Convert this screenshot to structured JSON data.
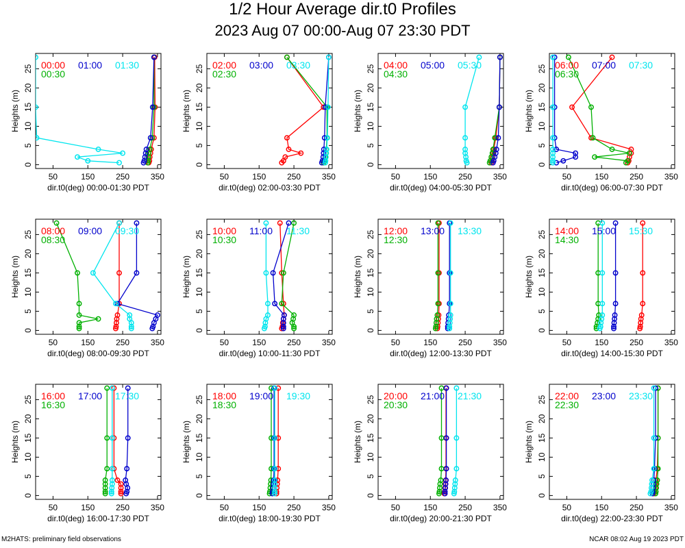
{
  "title": "1/2 Hour Average dir.t0 Profiles",
  "subtitle": "2023 Aug 07 00:00-Aug 07 23:30 PDT",
  "footer_left": "M2HATS: preliminary field observations",
  "footer_right": "NCAR 08:02 Aug 19 2023 PDT",
  "colors": {
    "first": "#ff0000",
    "second": "#00b000",
    "third": "#0000cc",
    "fourth": "#00e5ee"
  },
  "chart_data": {
    "type": "line",
    "shared": {
      "ylabel": "Heights (m)",
      "xlim": [
        0,
        360
      ],
      "ylim": [
        -1,
        29
      ],
      "xticks": [
        50,
        150,
        250,
        350
      ],
      "yticks": [
        0,
        5,
        10,
        15,
        20,
        25
      ],
      "heights": [
        0.5,
        1,
        2,
        3,
        4,
        7,
        15,
        28
      ],
      "legend_placement": "top"
    },
    "panels": [
      {
        "xlabel": "dir.t0(deg) 00:00-01:30 PDT",
        "series": [
          {
            "name": "00:00",
            "values": [
              325,
              327,
              328,
              330,
              332,
              340,
              343,
              342
            ]
          },
          {
            "name": "00:30",
            "values": [
              322,
              323,
              324,
              325,
              328,
              335,
              340,
              340
            ]
          },
          {
            "name": "01:00",
            "values": [
              310,
              312,
              314,
              316,
              318,
              330,
              336,
              340
            ]
          },
          {
            "name": "01:30",
            "values": [
              240,
              150,
              120,
              250,
              180,
              3,
              0,
              0
            ]
          }
        ]
      },
      {
        "xlabel": "dir.t0(deg) 02:00-03:30 PDT",
        "series": [
          {
            "name": "02:00",
            "values": [
              215,
              220,
              225,
              270,
              235,
              230,
              335,
              230
            ]
          },
          {
            "name": "02:30",
            "values": [
              335,
              337,
              340,
              342,
              343,
              345,
              345,
              230
            ]
          },
          {
            "name": "03:00",
            "values": [
              330,
              332,
              334,
              335,
              336,
              338,
              340,
              350
            ]
          },
          {
            "name": "03:30",
            "values": [
              340,
              341,
              342,
              343,
              344,
              346,
              348,
              350
            ]
          }
        ]
      },
      {
        "xlabel": "dir.t0(deg) 04:00-05:30 PDT",
        "series": [
          {
            "name": "04:00",
            "values": [
              325,
              327,
              329,
              330,
              332,
              338,
              348,
              350
            ]
          },
          {
            "name": "04:30",
            "values": [
              320,
              322,
              325,
              328,
              330,
              335,
              348,
              350
            ]
          },
          {
            "name": "05:00",
            "values": [
              330,
              332,
              335,
              338,
              340,
              345,
              348,
              350
            ]
          },
          {
            "name": "05:30",
            "values": [
              255,
              253,
              252,
              250,
              250,
              250,
              250,
              290
            ]
          }
        ]
      },
      {
        "xlabel": "dir.t0(deg) 06:00-07:30 PDT",
        "series": [
          {
            "name": "06:00",
            "values": [
              225,
              228,
              230,
              235,
              235,
              120,
              65,
              180
            ]
          },
          {
            "name": "06:30",
            "values": [
              220,
              225,
              130,
              230,
              180,
              125,
              120,
              55
            ]
          },
          {
            "name": "07:00",
            "values": [
              20,
              40,
              75,
              75,
              20,
              15,
              15,
              15
            ]
          },
          {
            "name": "07:30",
            "values": [
              10,
              10,
              10,
              10,
              10,
              10,
              10,
              10
            ]
          }
        ]
      },
      {
        "xlabel": "dir.t0(deg) 08:00-09:30 PDT",
        "series": [
          {
            "name": "08:00",
            "values": [
              230,
              231,
              232,
              233,
              235,
              240,
              240,
              240
            ]
          },
          {
            "name": "08:30",
            "values": [
              125,
              125,
              125,
              180,
              125,
              125,
              120,
              60
            ]
          },
          {
            "name": "09:00",
            "values": [
              335,
              337,
              340,
              345,
              350,
              235,
              290,
              290
            ]
          },
          {
            "name": "09:30",
            "values": [
              275,
              275,
              275,
              270,
              270,
              230,
              165,
              240
            ]
          }
        ]
      },
      {
        "xlabel": "dir.t0(deg) 10:00-11:30 PDT",
        "series": [
          {
            "name": "10:00",
            "values": [
              215,
              217,
              218,
              220,
              222,
              220,
              215,
              210
            ]
          },
          {
            "name": "10:30",
            "values": [
              250,
              250,
              245,
              248,
              250,
              215,
              220,
              250
            ]
          },
          {
            "name": "11:00",
            "values": [
              220,
              220,
              220,
              220,
              222,
              195,
              190,
              235
            ]
          },
          {
            "name": "11:30",
            "values": [
              165,
              167,
              168,
              170,
              175,
              175,
              170,
              170
            ]
          }
        ]
      },
      {
        "xlabel": "dir.t0(deg) 12:00-13:30 PDT",
        "series": [
          {
            "name": "12:00",
            "values": [
              170,
              171,
              172,
              173,
              174,
              175,
              175,
              175
            ]
          },
          {
            "name": "12:30",
            "values": [
              165,
              166,
              167,
              168,
              170,
              172,
              172,
              172
            ]
          },
          {
            "name": "13:00",
            "values": [
              200,
              200,
              201,
              202,
              203,
              205,
              205,
              205
            ]
          },
          {
            "name": "13:30",
            "values": [
              205,
              205,
              206,
              207,
              208,
              208,
              208,
              208
            ]
          }
        ]
      },
      {
        "xlabel": "dir.t0(deg) 14:00-15:30 PDT",
        "series": [
          {
            "name": "14:00",
            "values": [
              260,
              261,
              262,
              263,
              265,
              268,
              268,
              268
            ]
          },
          {
            "name": "14:30",
            "values": [
              135,
              135,
              138,
              140,
              142,
              140,
              140,
              140
            ]
          },
          {
            "name": "15:00",
            "values": [
              185,
              185,
              186,
              187,
              188,
              190,
              190,
              190
            ]
          },
          {
            "name": "15:30",
            "values": [
              145,
              147,
              148,
              150,
              152,
              152,
              152,
              152
            ]
          }
        ]
      },
      {
        "xlabel": "dir.t0(deg) 16:00-17:30 PDT",
        "series": [
          {
            "name": "16:00",
            "values": [
              245,
              245,
              245,
              245,
              235,
              225,
              225,
              225
            ]
          },
          {
            "name": "16:30",
            "values": [
              200,
              200,
              200,
              200,
              200,
              205,
              205,
              205
            ]
          },
          {
            "name": "17:00",
            "values": [
              260,
              262,
              264,
              260,
              258,
              262,
              265,
              265
            ]
          },
          {
            "name": "17:30",
            "values": [
              218,
              218,
              219,
              220,
              220,
              220,
              220,
              220
            ]
          }
        ]
      },
      {
        "xlabel": "dir.t0(deg) 18:00-19:30 PDT",
        "series": [
          {
            "name": "18:00",
            "values": [
              200,
              200,
              201,
              202,
              203,
              205,
              205,
              205
            ]
          },
          {
            "name": "18:30",
            "values": [
              180,
              181,
              182,
              183,
              184,
              185,
              185,
              185
            ]
          },
          {
            "name": "19:00",
            "values": [
              188,
              189,
              190,
              191,
              192,
              193,
              193,
              193
            ]
          },
          {
            "name": "19:30",
            "values": [
              195,
              195,
              195,
              195,
              195,
              195,
              195,
              195
            ]
          }
        ]
      },
      {
        "xlabel": "dir.t0(deg) 20:00-21:30 PDT",
        "series": [
          {
            "name": "20:00",
            "values": [
              190,
              191,
              192,
              193,
              194,
              195,
              195,
              195
            ]
          },
          {
            "name": "20:30",
            "values": [
              175,
              176,
              177,
              178,
              180,
              182,
              182,
              182
            ]
          },
          {
            "name": "21:00",
            "values": [
              192,
              192,
              193,
              194,
              195,
              196,
              196,
              196
            ]
          },
          {
            "name": "21:30",
            "values": [
              218,
              219,
              220,
              221,
              222,
              225,
              225,
              225
            ]
          }
        ]
      },
      {
        "xlabel": "dir.t0(deg) 22:00-23:30 PDT",
        "series": [
          {
            "name": "22:00",
            "values": [
              300,
              302,
              305,
              305,
              306,
              310,
              312,
              312
            ]
          },
          {
            "name": "22:30",
            "values": [
              305,
              306,
              307,
              308,
              310,
              312,
              312,
              312
            ]
          },
          {
            "name": "23:00",
            "values": [
              296,
              297,
              298,
              299,
              300,
              302,
              305,
              305
            ]
          },
          {
            "name": "23:30",
            "values": [
              290,
              292,
              293,
              294,
              295,
              300,
              300,
              300
            ]
          }
        ]
      }
    ]
  }
}
